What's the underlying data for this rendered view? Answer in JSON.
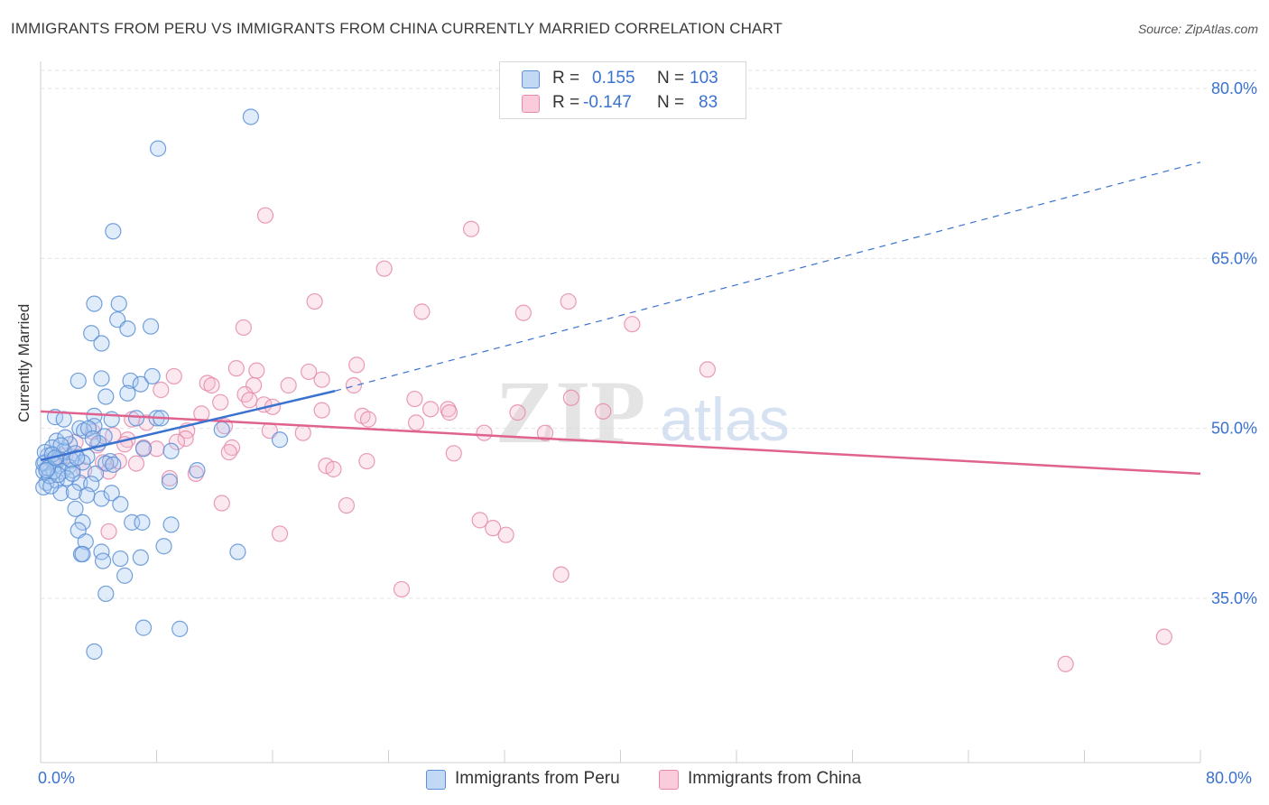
{
  "title": "IMMIGRANTS FROM PERU VS IMMIGRANTS FROM CHINA CURRENTLY MARRIED CORRELATION CHART",
  "source": "Source: ZipAtlas.com",
  "watermark": {
    "zip": "ZIP",
    "atlas": "atlas"
  },
  "legend": {
    "rows": [
      {
        "r_label": "R =",
        "r_value": "0.155",
        "n_label": "N =",
        "n_value": "103"
      },
      {
        "r_label": "R =",
        "r_value": "-0.147",
        "n_label": "N =",
        "n_value": "83"
      }
    ]
  },
  "bottom_legend": [
    "Immigrants from Peru",
    "Immigrants from China"
  ],
  "colors": {
    "peru_fill": "#a8c8f0",
    "peru_stroke": "#5b8fd6",
    "peru_line": "#3a72d0",
    "china_fill": "#f7bcd0",
    "china_stroke": "#e58aab",
    "china_line": "#e0628f",
    "tick_label": "#3a72d0",
    "grid": "#e3e3e3"
  },
  "chart_data": {
    "type": "scatter",
    "title": "IMMIGRANTS FROM PERU VS IMMIGRANTS FROM CHINA CURRENTLY MARRIED CORRELATION CHART",
    "ylabel": "Currently Married",
    "xlabel": "",
    "xlim": [
      0,
      80
    ],
    "ylim": [
      20.5,
      81.6
    ],
    "x_tick_labels": [
      "0.0%",
      "80.0%"
    ],
    "y_ticks": [
      35,
      50,
      65,
      80
    ],
    "y_tick_labels": [
      "35.0%",
      "50.0%",
      "65.0%",
      "80.0%"
    ],
    "grid": true,
    "legend_position": "top-center",
    "series": [
      {
        "name": "Immigrants from Peru",
        "R": 0.155,
        "N": 103,
        "trend_solid": [
          [
            0,
            47.2
          ],
          [
            20.3,
            53.3
          ]
        ],
        "trend_dashed": [
          [
            20.3,
            53.3
          ],
          [
            80,
            73.5
          ]
        ],
        "points": [
          [
            14.5,
            77.5
          ],
          [
            8.1,
            74.7
          ],
          [
            5.0,
            67.4
          ],
          [
            3.7,
            61.0
          ],
          [
            5.4,
            61.0
          ],
          [
            5.3,
            59.6
          ],
          [
            3.5,
            58.4
          ],
          [
            6.0,
            58.8
          ],
          [
            7.6,
            59.0
          ],
          [
            4.2,
            57.5
          ],
          [
            2.6,
            54.2
          ],
          [
            4.2,
            54.4
          ],
          [
            6.2,
            54.2
          ],
          [
            6.9,
            53.9
          ],
          [
            7.7,
            54.6
          ],
          [
            4.5,
            52.8
          ],
          [
            6.0,
            53.1
          ],
          [
            1.0,
            51.0
          ],
          [
            1.6,
            50.8
          ],
          [
            3.7,
            51.1
          ],
          [
            4.9,
            50.8
          ],
          [
            8.0,
            50.9
          ],
          [
            8.3,
            50.9
          ],
          [
            2.7,
            50.0
          ],
          [
            3.7,
            50.2
          ],
          [
            3.0,
            49.8
          ],
          [
            4.4,
            49.3
          ],
          [
            12.5,
            49.9
          ],
          [
            16.5,
            49.0
          ],
          [
            1.1,
            48.9
          ],
          [
            2.0,
            48.6
          ],
          [
            0.8,
            48.3
          ],
          [
            1.6,
            48.0
          ],
          [
            2.4,
            47.8
          ],
          [
            0.5,
            47.6
          ],
          [
            1.3,
            47.3
          ],
          [
            3.2,
            47.5
          ],
          [
            4.8,
            47.1
          ],
          [
            7.1,
            48.2
          ],
          [
            9.0,
            48.0
          ],
          [
            0.3,
            47.0
          ],
          [
            1.0,
            46.8
          ],
          [
            1.9,
            46.6
          ],
          [
            2.9,
            47.0
          ],
          [
            4.5,
            46.9
          ],
          [
            5.0,
            46.8
          ],
          [
            0.2,
            46.2
          ],
          [
            1.5,
            46.2
          ],
          [
            2.2,
            46.3
          ],
          [
            3.8,
            46.0
          ],
          [
            10.8,
            46.3
          ],
          [
            0.4,
            45.2
          ],
          [
            1.1,
            45.4
          ],
          [
            2.7,
            45.2
          ],
          [
            3.5,
            45.1
          ],
          [
            8.9,
            45.3
          ],
          [
            0.2,
            44.8
          ],
          [
            1.4,
            44.3
          ],
          [
            2.3,
            44.4
          ],
          [
            3.2,
            44.1
          ],
          [
            4.2,
            43.8
          ],
          [
            4.9,
            44.3
          ],
          [
            5.5,
            43.3
          ],
          [
            2.4,
            42.9
          ],
          [
            2.9,
            41.7
          ],
          [
            6.3,
            41.7
          ],
          [
            7.0,
            41.7
          ],
          [
            9.0,
            41.5
          ],
          [
            2.6,
            41.0
          ],
          [
            3.1,
            40.0
          ],
          [
            4.2,
            39.1
          ],
          [
            2.8,
            38.9
          ],
          [
            5.5,
            38.5
          ],
          [
            6.9,
            38.6
          ],
          [
            8.5,
            39.6
          ],
          [
            13.6,
            39.1
          ],
          [
            4.3,
            38.3
          ],
          [
            2.9,
            38.9
          ],
          [
            5.8,
            37.0
          ],
          [
            4.5,
            35.4
          ],
          [
            7.1,
            32.4
          ],
          [
            9.6,
            32.3
          ],
          [
            3.7,
            30.3
          ],
          [
            0.2,
            46.9
          ],
          [
            0.6,
            45.8
          ],
          [
            1.8,
            45.6
          ],
          [
            0.3,
            47.9
          ],
          [
            2.1,
            47.2
          ],
          [
            1.7,
            49.2
          ],
          [
            0.7,
            44.9
          ],
          [
            3.3,
            50.0
          ],
          [
            0.9,
            46.2
          ],
          [
            2.5,
            47.4
          ],
          [
            1.2,
            45.9
          ],
          [
            0.5,
            46.5
          ],
          [
            4.0,
            48.7
          ],
          [
            1.4,
            48.5
          ],
          [
            0.8,
            47.7
          ],
          [
            2.2,
            46.0
          ],
          [
            3.6,
            49.1
          ],
          [
            0.4,
            46.3
          ],
          [
            6.6,
            50.9
          ],
          [
            1.0,
            47.4
          ]
        ]
      },
      {
        "name": "Immigrants from China",
        "R": -0.147,
        "N": 83,
        "trend_solid": [
          [
            0,
            51.5
          ],
          [
            80,
            46.0
          ]
        ],
        "points": [
          [
            15.5,
            68.8
          ],
          [
            29.7,
            67.6
          ],
          [
            23.7,
            64.1
          ],
          [
            18.9,
            61.2
          ],
          [
            26.3,
            60.3
          ],
          [
            33.3,
            60.2
          ],
          [
            36.4,
            61.2
          ],
          [
            40.8,
            59.2
          ],
          [
            14.0,
            58.9
          ],
          [
            46.0,
            55.2
          ],
          [
            21.8,
            55.6
          ],
          [
            13.5,
            55.3
          ],
          [
            14.9,
            55.1
          ],
          [
            18.5,
            55.0
          ],
          [
            9.2,
            54.6
          ],
          [
            19.4,
            54.3
          ],
          [
            11.5,
            54.0
          ],
          [
            11.8,
            53.8
          ],
          [
            14.7,
            53.8
          ],
          [
            17.1,
            53.8
          ],
          [
            21.6,
            53.8
          ],
          [
            8.3,
            53.4
          ],
          [
            14.1,
            53.0
          ],
          [
            14.4,
            52.5
          ],
          [
            25.8,
            52.6
          ],
          [
            36.6,
            52.7
          ],
          [
            12.4,
            52.3
          ],
          [
            15.4,
            52.1
          ],
          [
            16.0,
            51.9
          ],
          [
            19.4,
            51.6
          ],
          [
            26.9,
            51.7
          ],
          [
            28.1,
            51.7
          ],
          [
            28.2,
            51.4
          ],
          [
            32.9,
            51.4
          ],
          [
            11.1,
            51.3
          ],
          [
            22.2,
            51.1
          ],
          [
            22.6,
            50.8
          ],
          [
            25.9,
            50.5
          ],
          [
            38.8,
            51.5
          ],
          [
            6.3,
            50.8
          ],
          [
            7.3,
            50.5
          ],
          [
            12.7,
            50.2
          ],
          [
            10.1,
            49.8
          ],
          [
            15.8,
            49.8
          ],
          [
            18.1,
            49.6
          ],
          [
            30.6,
            49.6
          ],
          [
            34.8,
            49.6
          ],
          [
            5.0,
            49.4
          ],
          [
            6.0,
            49.0
          ],
          [
            10.0,
            49.1
          ],
          [
            3.9,
            48.5
          ],
          [
            7.1,
            48.3
          ],
          [
            8.0,
            48.2
          ],
          [
            13.2,
            48.3
          ],
          [
            28.5,
            47.8
          ],
          [
            5.4,
            47.1
          ],
          [
            4.3,
            47.0
          ],
          [
            22.5,
            47.1
          ],
          [
            6.6,
            46.9
          ],
          [
            19.7,
            46.7
          ],
          [
            20.2,
            46.4
          ],
          [
            10.7,
            46.0
          ],
          [
            8.9,
            45.6
          ],
          [
            4.7,
            46.2
          ],
          [
            12.5,
            43.4
          ],
          [
            21.1,
            43.2
          ],
          [
            16.5,
            40.7
          ],
          [
            30.3,
            41.9
          ],
          [
            31.2,
            41.2
          ],
          [
            32.1,
            40.6
          ],
          [
            4.7,
            40.9
          ],
          [
            35.9,
            37.1
          ],
          [
            24.9,
            35.8
          ],
          [
            77.5,
            31.6
          ],
          [
            70.7,
            29.2
          ],
          [
            3.6,
            49.7
          ],
          [
            2.4,
            48.8
          ],
          [
            1.7,
            47.6
          ],
          [
            9.4,
            48.8
          ],
          [
            5.8,
            48.6
          ],
          [
            3.0,
            46.3
          ],
          [
            13.0,
            47.9
          ],
          [
            0.8,
            47.2
          ]
        ]
      }
    ]
  }
}
